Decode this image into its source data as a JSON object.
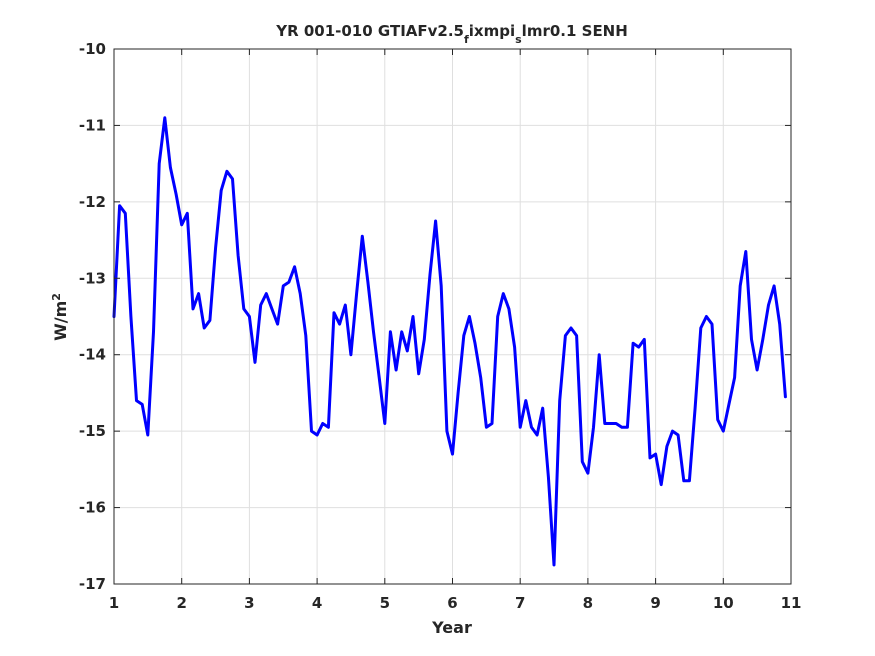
{
  "chart_data": {
    "type": "line",
    "title_parts": [
      "YR 001-010 GTIAFv2.5",
      "f",
      "ixmpi",
      "s",
      "lmr0.1 SENH"
    ],
    "xlabel": "Year",
    "ylabel_parts": [
      "W/m",
      "2"
    ],
    "xlim": [
      1,
      11
    ],
    "ylim": [
      -17,
      -10
    ],
    "xticks": [
      1,
      2,
      3,
      4,
      5,
      6,
      7,
      8,
      9,
      10,
      11
    ],
    "yticks": [
      -17,
      -16,
      -15,
      -14,
      -13,
      -12,
      -11,
      -10
    ],
    "grid": true,
    "line_color": "#0000ff",
    "series": [
      {
        "x": [
          1.0,
          1.083,
          1.167,
          1.25,
          1.333,
          1.417,
          1.5,
          1.583,
          1.667,
          1.75,
          1.833,
          1.917,
          2.0,
          2.083,
          2.167,
          2.25,
          2.333,
          2.417,
          2.5,
          2.583,
          2.667,
          2.75,
          2.833,
          2.917,
          3.0,
          3.083,
          3.167,
          3.25,
          3.333,
          3.417,
          3.5,
          3.583,
          3.667,
          3.75,
          3.833,
          3.917,
          4.0,
          4.083,
          4.167,
          4.25,
          4.333,
          4.417,
          4.5,
          4.583,
          4.667,
          4.75,
          4.833,
          4.917,
          5.0,
          5.083,
          5.167,
          5.25,
          5.333,
          5.417,
          5.5,
          5.583,
          5.667,
          5.75,
          5.833,
          5.917,
          6.0,
          6.083,
          6.167,
          6.25,
          6.333,
          6.417,
          6.5,
          6.583,
          6.667,
          6.75,
          6.833,
          6.917,
          7.0,
          7.083,
          7.167,
          7.25,
          7.333,
          7.417,
          7.5,
          7.583,
          7.667,
          7.75,
          7.833,
          7.917,
          8.0,
          8.083,
          8.167,
          8.25,
          8.333,
          8.417,
          8.5,
          8.583,
          8.667,
          8.75,
          8.833,
          8.917,
          9.0,
          9.083,
          9.167,
          9.25,
          9.333,
          9.417,
          9.5,
          9.583,
          9.667,
          9.75,
          9.833,
          9.917,
          10.0,
          10.083,
          10.167,
          10.25,
          10.333,
          10.417,
          10.5,
          10.583,
          10.667,
          10.75,
          10.833,
          10.917
        ],
        "y": [
          -13.5,
          -12.05,
          -12.15,
          -13.5,
          -14.6,
          -14.65,
          -15.05,
          -13.7,
          -11.5,
          -10.9,
          -11.55,
          -11.9,
          -12.3,
          -12.15,
          -13.4,
          -13.2,
          -13.65,
          -13.55,
          -12.6,
          -11.85,
          -11.6,
          -11.7,
          -12.7,
          -13.4,
          -13.5,
          -14.1,
          -13.35,
          -13.2,
          -13.4,
          -13.6,
          -13.1,
          -13.05,
          -12.85,
          -13.2,
          -13.75,
          -15.0,
          -15.05,
          -14.9,
          -14.95,
          -13.45,
          -13.6,
          -13.35,
          -14.0,
          -13.2,
          -12.45,
          -13.05,
          -13.7,
          -14.3,
          -14.9,
          -13.7,
          -14.2,
          -13.7,
          -13.95,
          -13.5,
          -14.25,
          -13.8,
          -12.95,
          -12.25,
          -13.1,
          -15.0,
          -15.3,
          -14.5,
          -13.75,
          -13.5,
          -13.85,
          -14.3,
          -14.95,
          -14.9,
          -13.5,
          -13.2,
          -13.4,
          -13.9,
          -14.95,
          -14.6,
          -14.95,
          -15.05,
          -14.7,
          -15.6,
          -16.75,
          -14.6,
          -13.75,
          -13.65,
          -13.75,
          -15.4,
          -15.55,
          -14.95,
          -14.0,
          -14.9,
          -14.9,
          -14.9,
          -14.95,
          -14.95,
          -13.85,
          -13.9,
          -13.8,
          -15.35,
          -15.3,
          -15.7,
          -15.2,
          -15.0,
          -15.05,
          -15.65,
          -15.65,
          -14.7,
          -13.65,
          -13.5,
          -13.6,
          -14.85,
          -15.0,
          -14.65,
          -14.3,
          -13.1,
          -12.65,
          -13.8,
          -14.2,
          -13.8,
          -13.35,
          -13.1,
          -13.6,
          -14.55
        ]
      }
    ]
  }
}
